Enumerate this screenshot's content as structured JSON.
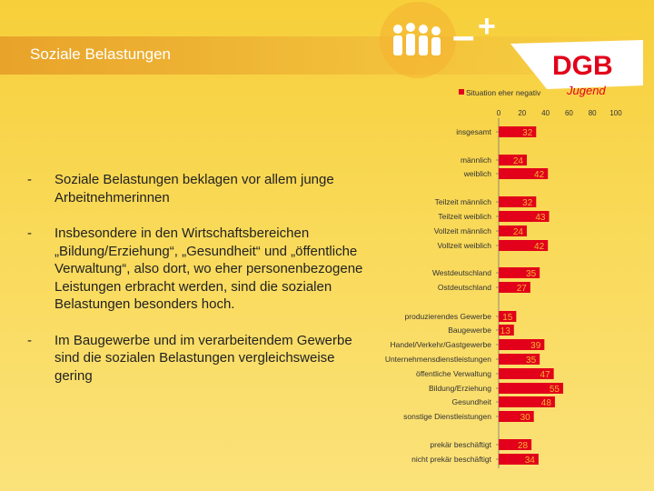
{
  "slide": {
    "title": "Soziale Belastungen",
    "bullets": [
      {
        "marker": "-",
        "text": "Soziale Belastungen beklagen vor allem junge Arbeitnehmerinnen"
      },
      {
        "marker": "-",
        "text": "Insbesondere in den Wirtschaftsbereichen „Bildung/Erziehung“, „Gesundheit“ und „öffentliche Verwaltung“, also dort, wo eher personenbezogene Leistungen erbracht werden, sind die sozialen Belastungen besonders hoch."
      },
      {
        "marker": "-",
        "text": "Im Baugewerbe und im verarbeitendem Gewerbe sind die sozialen Belastungen vergleichsweise gering"
      }
    ]
  },
  "logo": {
    "text": "DGB",
    "script": "Jugend",
    "minus": "–",
    "plus": "+",
    "color": "#e2001a"
  },
  "colors": {
    "bar": "#e2001a",
    "label_on_bar": "#f4b533"
  },
  "chart_data": {
    "type": "bar",
    "orientation": "horizontal",
    "legend": {
      "label": "Situation eher negativ",
      "position": "top"
    },
    "xlim": [
      0,
      100
    ],
    "xticks": [
      "0",
      "20",
      "40",
      "60",
      "80",
      "100"
    ],
    "categories": [
      "insgesamt",
      "männlich",
      "weiblich",
      "Teilzeit männlich",
      "Teilzeit weiblich",
      "Vollzeit männlich",
      "Vollzeit weiblich",
      "Westdeutschland",
      "Ostdeutschland",
      "produzierendes Gewerbe",
      "Baugewerbe",
      "Handel/Verkehr/Gastgewerbe",
      "Unternehmensdienstleistungen",
      "öffentliche Verwaltung",
      "Bildung/Erziehung",
      "Gesundheit",
      "sonstige Dienstleistungen",
      "prekär beschäftigt",
      "nicht prekär beschäftigt"
    ],
    "values": [
      32,
      24,
      42,
      32,
      43,
      24,
      42,
      35,
      27,
      15,
      13,
      39,
      35,
      47,
      55,
      48,
      30,
      28,
      34
    ],
    "data_labels": [
      "32",
      "24",
      "42",
      "32",
      "43",
      "24",
      "42",
      "35",
      "27",
      "15",
      "13",
      "39",
      "35",
      "47",
      "55",
      "48",
      "30",
      "28",
      "34"
    ],
    "grid": false
  }
}
